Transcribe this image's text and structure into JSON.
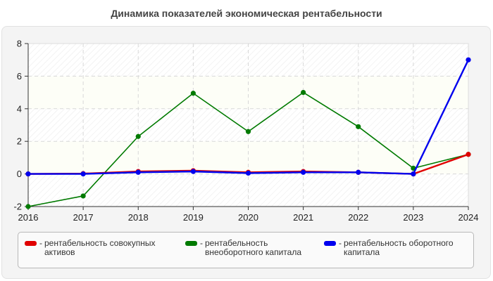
{
  "chart_data": {
    "type": "line",
    "title": "Динамика показателей экономическая рентабельности",
    "xlabel": "",
    "ylabel": "",
    "x": [
      "2016",
      "2017",
      "2018",
      "2019",
      "2020",
      "2021",
      "2022",
      "2023",
      "2024"
    ],
    "ylim": [
      -2,
      8
    ],
    "yticks": [
      "-2",
      "0",
      "2",
      "4",
      "6",
      "8"
    ],
    "grid": true,
    "legend_position": "bottom",
    "series": [
      {
        "name": "рентабельность совокупных активов",
        "color": "#e00000",
        "values": [
          0.0,
          0.02,
          0.15,
          0.2,
          0.1,
          0.15,
          0.1,
          0.0,
          1.2
        ]
      },
      {
        "name": "рентабельность внеоборотного капитала",
        "color": "#007a00",
        "values": [
          -2.0,
          -1.35,
          2.3,
          4.95,
          2.6,
          5.0,
          2.9,
          0.35,
          1.2
        ]
      },
      {
        "name": "рентабельность оборотного капитала",
        "color": "#0000ee",
        "values": [
          0.0,
          0.0,
          0.1,
          0.15,
          0.05,
          0.1,
          0.1,
          0.0,
          7.0
        ]
      }
    ]
  },
  "legend": {
    "items": [
      {
        "line1": "рентабельность совокупных",
        "line2": "активов",
        "color": "#e00000"
      },
      {
        "line1": "рентабельность",
        "line2": "внеоборотного капитала",
        "color": "#007a00"
      },
      {
        "line1": "рентабельность оборотного",
        "line2": "капитала",
        "color": "#0000ee"
      }
    ],
    "separator": "-"
  }
}
